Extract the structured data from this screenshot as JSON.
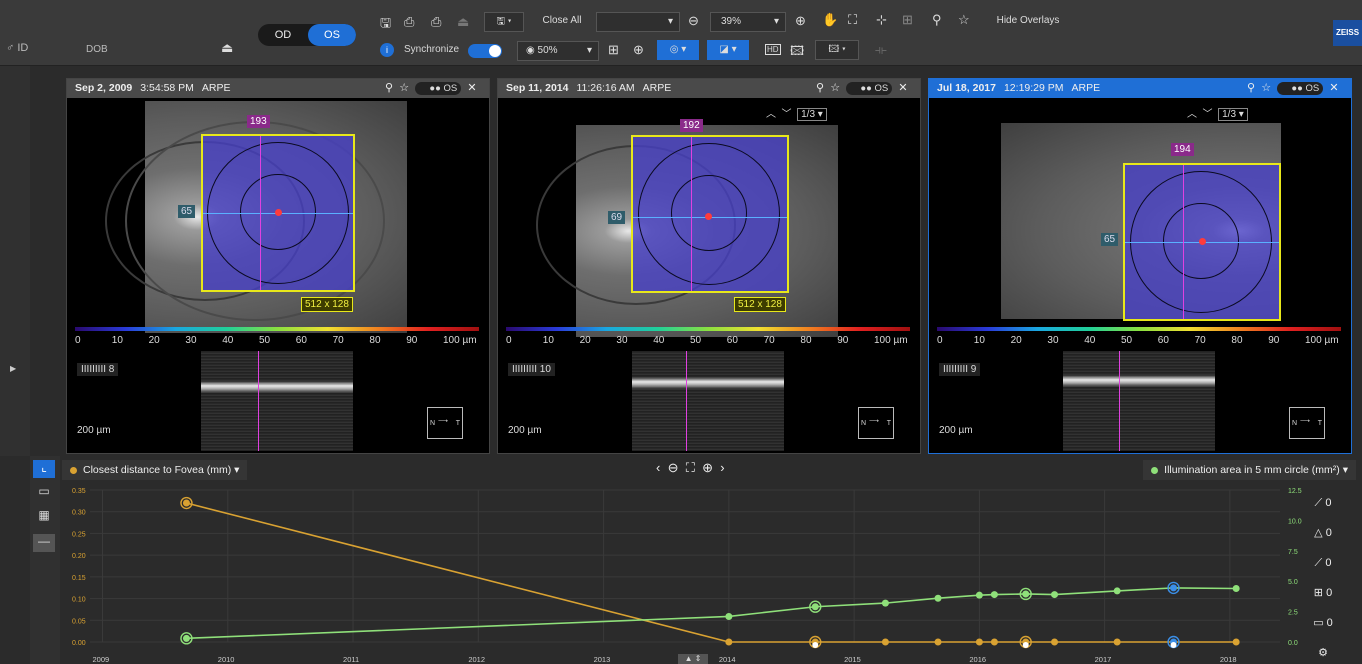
{
  "topbar": {
    "patient_id": "ID",
    "dob": "DOB",
    "od": "OD",
    "os": "OS",
    "synchronize": "Synchronize",
    "close_all": "Close All",
    "zoom": "39%",
    "opacity": "50%",
    "hide_overlays": "Hide Overlays",
    "brand": "ZEISS",
    "hd": "HD"
  },
  "panels": [
    {
      "date": "Sep 2, 2009",
      "time": "3:54:58 PM",
      "analysis": "ARPE",
      "eye": "OS",
      "slice": "193",
      "horiz": "65",
      "size": "512 x 128",
      "bscan": "8",
      "scale": "200 µm",
      "nt_n": "N",
      "nt_t": "T"
    },
    {
      "date": "Sep 11, 2014",
      "time": "11:26:16 AM",
      "analysis": "ARPE",
      "eye": "OS",
      "slice": "192",
      "horiz": "69",
      "size": "512 x 128",
      "bscan": "10",
      "scale": "200 µm",
      "page": "1/3",
      "nt_n": "N",
      "nt_t": "T"
    },
    {
      "date": "Jul 18, 2017",
      "time": "12:19:29 PM",
      "analysis": "ARPE",
      "eye": "OS",
      "slice": "194",
      "horiz": "65",
      "bscan": "9",
      "scale": "200 µm",
      "page": "1/3",
      "nt_n": "N",
      "nt_t": "T"
    }
  ],
  "colorbar": {
    "ticks": [
      "0",
      "10",
      "20",
      "30",
      "40",
      "50",
      "60",
      "70",
      "80",
      "90",
      "100 µm"
    ]
  },
  "chart_controls": {
    "left_metric": "Closest distance to Fovea (mm)",
    "right_metric": "Illumination area in 5 mm circle (mm²)"
  },
  "tools": [
    "0",
    "0",
    "0",
    "0",
    "0"
  ],
  "colors": {
    "orange": "#d9a232",
    "green": "#8fe07a",
    "selected": "#3b8fe8",
    "accent": "#1f6fd6"
  },
  "chart_data": {
    "type": "line",
    "x_ticks": [
      "2009",
      "2010",
      "2011",
      "2012",
      "2013",
      "2014",
      "2015",
      "2016",
      "2017",
      "2018"
    ],
    "y_left_ticks": [
      "0.35",
      "0.30",
      "0.25",
      "0.20",
      "0.15",
      "0.10",
      "0.05",
      "0.00"
    ],
    "y_right_ticks": [
      "12.5",
      "10.0",
      "7.5",
      "5.0",
      "2.5",
      "0.0"
    ],
    "ylim_left": [
      0,
      0.35
    ],
    "ylim_right": [
      0,
      12.5
    ],
    "series": [
      {
        "axis": "left",
        "color": "#d9a232",
        "points": [
          [
            2009.67,
            0.32
          ],
          [
            2014.0,
            0.0
          ],
          [
            2014.69,
            0.0
          ],
          [
            2015.25,
            0.0
          ],
          [
            2015.67,
            0.0
          ],
          [
            2016.0,
            0.0
          ],
          [
            2016.12,
            0.0
          ],
          [
            2016.37,
            0.0
          ],
          [
            2016.6,
            0.0
          ],
          [
            2017.1,
            0.0
          ],
          [
            2017.55,
            0.0
          ],
          [
            2018.05,
            0.0
          ]
        ]
      },
      {
        "axis": "right",
        "color": "#8fe07a",
        "points": [
          [
            2009.67,
            0.3
          ],
          [
            2014.0,
            2.1
          ],
          [
            2014.69,
            2.9
          ],
          [
            2015.25,
            3.2
          ],
          [
            2015.67,
            3.6
          ],
          [
            2016.0,
            3.85
          ],
          [
            2016.12,
            3.9
          ],
          [
            2016.37,
            3.95
          ],
          [
            2016.6,
            3.9
          ],
          [
            2017.1,
            4.2
          ],
          [
            2017.55,
            4.45
          ],
          [
            2018.05,
            4.4
          ]
        ]
      }
    ],
    "highlighted_x": [
      2009.67,
      2014.69,
      2016.37,
      2017.55
    ]
  }
}
